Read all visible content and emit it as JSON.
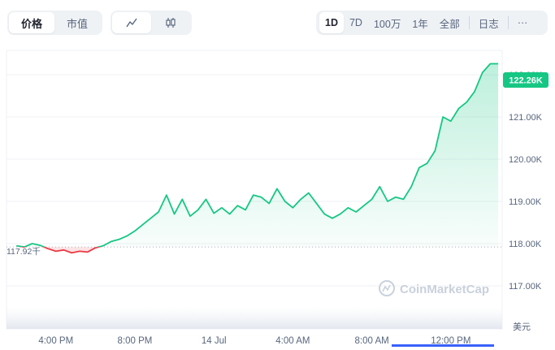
{
  "toolbar": {
    "metric_tabs": [
      "价格",
      "市值"
    ],
    "metric_active": 0,
    "chart_type_icons": [
      "line-chart-icon",
      "candlestick-icon"
    ],
    "chart_type_active": 0,
    "ranges": [
      "1D",
      "7D",
      "100万",
      "1年",
      "全部"
    ],
    "range_active": 0,
    "log_label": "日志",
    "more_label": "···"
  },
  "chart_data": {
    "type": "area",
    "y_ticks": [
      "122.00K",
      "121.00K",
      "120.00K",
      "119.00K",
      "118.00K",
      "117.00K"
    ],
    "x_ticks": [
      "4:00 PM",
      "8:00 PM",
      "14 Jul",
      "4:00 AM",
      "8:00 AM",
      "12:00 PM"
    ],
    "current_price_label": "122.26K",
    "baseline_label": "117.92千",
    "baseline": 117.92,
    "currency_label": "美元",
    "watermark": "CoinMarketCap",
    "ylim": [
      116.5,
      122.5
    ],
    "xlim": [
      13.5,
      38.6
    ],
    "colors": {
      "up": "#16c784",
      "down": "#ea3943",
      "tag": "#16c784"
    },
    "series": [
      {
        "x": [
          14.0,
          14.4,
          14.8,
          15.2,
          15.6,
          16.0,
          16.4,
          16.8,
          17.2,
          17.6,
          18.0,
          18.4,
          18.8,
          19.2,
          19.6,
          20.0,
          20.4,
          20.8,
          21.2,
          21.6,
          22.0,
          22.4,
          22.8,
          23.2,
          23.6,
          24.0,
          24.4,
          24.8,
          25.2,
          25.6,
          26.0,
          26.4,
          26.8,
          27.2,
          27.6,
          28.0,
          28.4,
          28.8,
          29.2,
          29.6,
          30.0,
          30.4,
          30.8,
          31.2,
          31.6,
          32.0,
          32.4,
          32.8,
          33.2,
          33.6,
          34.0,
          34.4,
          34.8,
          35.2,
          35.6,
          36.0,
          36.4,
          36.8,
          37.2,
          37.6,
          38.0,
          38.4
        ],
        "y": [
          117.95,
          117.92,
          118.0,
          117.96,
          117.88,
          117.82,
          117.85,
          117.78,
          117.82,
          117.8,
          117.9,
          117.95,
          118.05,
          118.1,
          118.18,
          118.3,
          118.45,
          118.6,
          118.75,
          119.15,
          118.7,
          119.05,
          118.65,
          118.8,
          119.05,
          118.72,
          118.85,
          118.7,
          118.9,
          118.8,
          119.15,
          119.1,
          118.95,
          119.3,
          119.0,
          118.85,
          119.05,
          119.2,
          118.95,
          118.7,
          118.6,
          118.7,
          118.85,
          118.75,
          118.9,
          119.05,
          119.35,
          119.0,
          119.1,
          119.05,
          119.35,
          119.8,
          119.9,
          120.2,
          121.0,
          120.9,
          121.2,
          121.35,
          121.6,
          122.05,
          122.26,
          122.26
        ]
      }
    ]
  }
}
